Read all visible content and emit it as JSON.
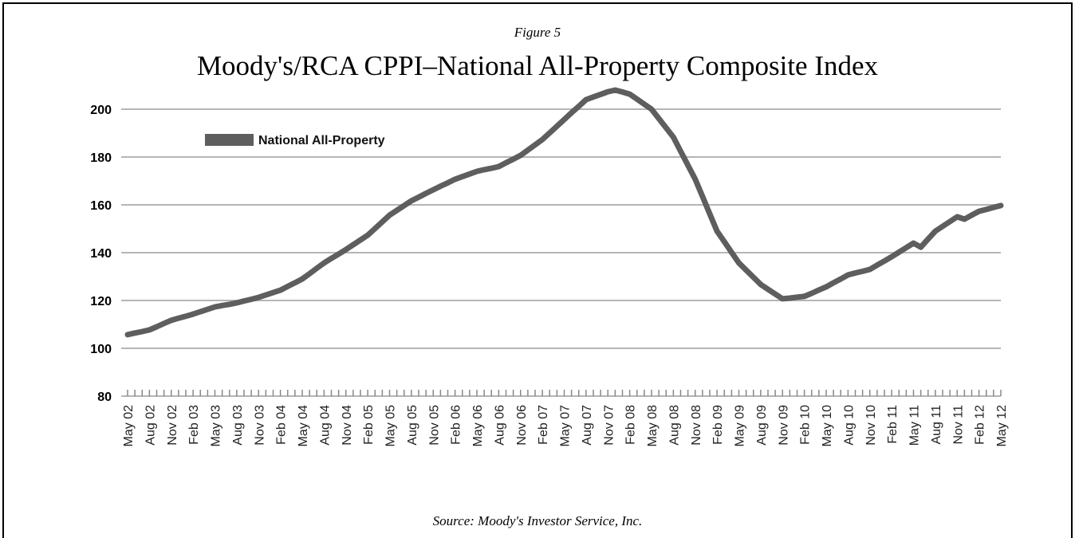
{
  "chart_data": {
    "type": "line",
    "figure_label": "Figure 5",
    "title": "Moody's/RCA CPPI–National All-Property Composite Index",
    "source": "Source: Moody's Investor Service, Inc.",
    "categories": [
      "May 02",
      null,
      null,
      "Aug 02",
      null,
      null,
      "Nov 02",
      null,
      null,
      "Feb 03",
      null,
      null,
      "May 03",
      null,
      null,
      "Aug 03",
      null,
      null,
      "Nov 03",
      null,
      null,
      "Feb 04",
      null,
      null,
      "May 04",
      null,
      null,
      "Aug 04",
      null,
      null,
      "Nov 04",
      null,
      null,
      "Feb 05",
      null,
      null,
      "May 05",
      null,
      null,
      "Aug 05",
      null,
      null,
      "Nov 05",
      null,
      null,
      "Feb 06",
      null,
      null,
      "May 06",
      null,
      null,
      "Aug 06",
      null,
      null,
      "Nov 06",
      null,
      null,
      "Feb 07",
      null,
      null,
      "May 07",
      null,
      null,
      "Aug 07",
      null,
      null,
      "Nov 07",
      null,
      null,
      "Feb 08",
      null,
      null,
      "May 08",
      null,
      null,
      "Aug 08",
      null,
      null,
      "Nov 08",
      null,
      null,
      "Feb 09",
      null,
      null,
      "May 09",
      null,
      null,
      "Aug 09",
      null,
      null,
      "Nov 09",
      null,
      null,
      "Feb 10",
      null,
      null,
      "May 10",
      null,
      null,
      "Aug 10",
      null,
      null,
      "Nov 10",
      null,
      null,
      "Feb 11",
      null,
      null,
      "May 11",
      null,
      null,
      "Aug 11",
      null,
      null,
      "Nov 11",
      null,
      null,
      "Feb 12",
      null,
      null,
      "May 12"
    ],
    "series": [
      {
        "name": "National All-Property",
        "color": "#5e5e5e",
        "values": [
          105.7,
          106.4,
          107.0,
          107.7,
          109.0,
          110.4,
          111.7,
          112.6,
          113.4,
          114.3,
          115.3,
          116.3,
          117.3,
          117.9,
          118.4,
          119.0,
          119.8,
          120.5,
          121.3,
          122.3,
          123.3,
          124.3,
          125.9,
          127.4,
          129.0,
          131.2,
          133.5,
          135.7,
          137.6,
          139.4,
          141.3,
          143.3,
          145.3,
          147.3,
          150.1,
          152.9,
          155.7,
          157.7,
          159.7,
          161.7,
          163.2,
          164.8,
          166.3,
          167.8,
          169.2,
          170.7,
          171.8,
          172.9,
          174.0,
          174.7,
          175.3,
          176.0,
          177.6,
          179.1,
          180.7,
          182.9,
          185.1,
          187.3,
          190.1,
          192.9,
          195.7,
          198.5,
          201.2,
          204.0,
          205.1,
          206.2,
          207.3,
          208.0,
          207.2,
          206.3,
          204.2,
          202.1,
          200.0,
          196.1,
          192.2,
          188.3,
          182.4,
          176.6,
          170.7,
          163.5,
          156.2,
          149.0,
          144.6,
          140.1,
          135.7,
          132.7,
          129.7,
          126.7,
          124.7,
          122.7,
          120.7,
          121.0,
          121.4,
          121.7,
          123.0,
          124.4,
          125.7,
          127.4,
          129.0,
          130.7,
          131.5,
          132.2,
          133.0,
          134.8,
          136.5,
          138.3,
          140.2,
          142.1,
          144.0,
          142.3,
          145.7,
          149.0,
          151.0,
          153.0,
          155.0,
          154.0,
          155.7,
          157.3,
          158.1,
          158.9,
          159.7
        ]
      }
    ],
    "ylim": [
      80,
      210
    ],
    "yticks": [
      80,
      100,
      120,
      140,
      160,
      180,
      200
    ],
    "grid": true,
    "legend": "upper left"
  }
}
